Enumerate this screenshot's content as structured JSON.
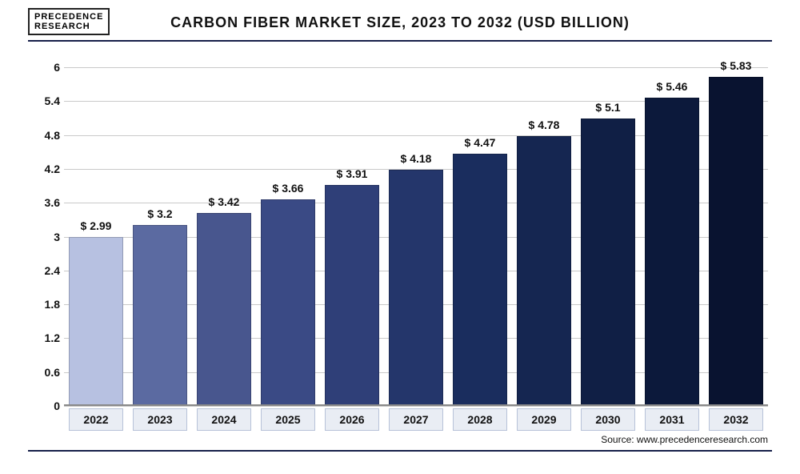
{
  "logo": {
    "line1": "PRECEDENCE",
    "line2": "RESEARCH"
  },
  "title": "CARBON FIBER MARKET SIZE, 2023 TO 2032 (USD BILLION)",
  "source": "Source: www.precedenceresearch.com",
  "chart": {
    "type": "bar",
    "ylim": [
      0,
      6.2
    ],
    "yticks": [
      0,
      0.6,
      1.2,
      1.8,
      2.4,
      3,
      3.6,
      4.2,
      4.8,
      5.4,
      6
    ],
    "grid_color": "#c9c9c9",
    "background_color": "#ffffff",
    "value_prefix": "$ ",
    "label_fontsize": 14,
    "title_fontsize": 18,
    "xcat_bg": "#e9edf4",
    "xcat_border": "#b7c2d8",
    "categories": [
      "2022",
      "2023",
      "2024",
      "2025",
      "2026",
      "2027",
      "2028",
      "2029",
      "2030",
      "2031",
      "2032"
    ],
    "values": [
      2.99,
      3.2,
      3.42,
      3.66,
      3.91,
      4.18,
      4.47,
      4.78,
      5.1,
      5.46,
      5.83
    ],
    "bar_colors": [
      "#b7c1e1",
      "#5b6aa1",
      "#48568e",
      "#3a4a85",
      "#2f3f78",
      "#24366b",
      "#1a2d5e",
      "#152651",
      "#101f45",
      "#0c193b",
      "#091330"
    ]
  }
}
